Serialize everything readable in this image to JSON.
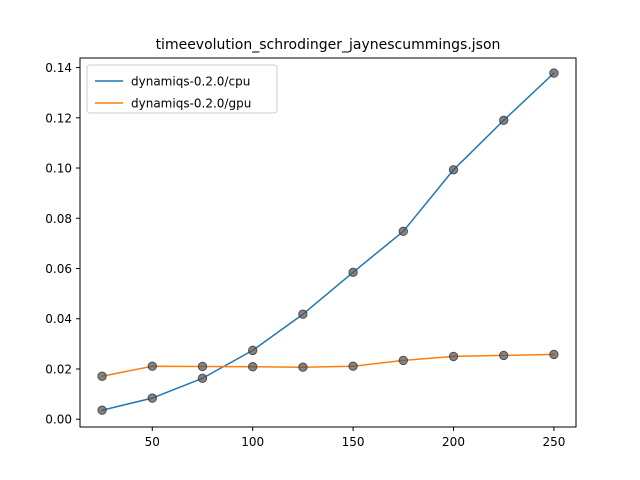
{
  "chart_data": {
    "type": "line",
    "title": "timeevolution_schrodinger_jaynescummings.json",
    "xlabel": "",
    "ylabel": "",
    "xlim": [
      14,
      261
    ],
    "ylim": [
      -0.0031,
      0.1438
    ],
    "xticks": [
      50,
      100,
      150,
      200,
      250
    ],
    "xtick_labels": [
      "50",
      "100",
      "150",
      "200",
      "250"
    ],
    "yticks": [
      0.0,
      0.02,
      0.04,
      0.06,
      0.08,
      0.1,
      0.12,
      0.14
    ],
    "ytick_labels": [
      "0.00",
      "0.02",
      "0.04",
      "0.06",
      "0.08",
      "0.10",
      "0.12",
      "0.14"
    ],
    "grid": false,
    "legend_position": "top-left",
    "x": [
      25,
      50,
      75,
      100,
      125,
      150,
      175,
      200,
      225,
      250
    ],
    "series": [
      {
        "name": "dynamiqs-0.2.0/cpu",
        "color": "#1f77b4",
        "values": [
          0.0036,
          0.0084,
          0.0163,
          0.0274,
          0.0418,
          0.0585,
          0.0748,
          0.0993,
          0.119,
          0.1378
        ]
      },
      {
        "name": "dynamiqs-0.2.0/gpu",
        "color": "#ff7f0e",
        "values": [
          0.0171,
          0.0211,
          0.021,
          0.0209,
          0.0207,
          0.0211,
          0.0234,
          0.025,
          0.0254,
          0.0258
        ]
      }
    ],
    "marker_color": "#555555"
  }
}
